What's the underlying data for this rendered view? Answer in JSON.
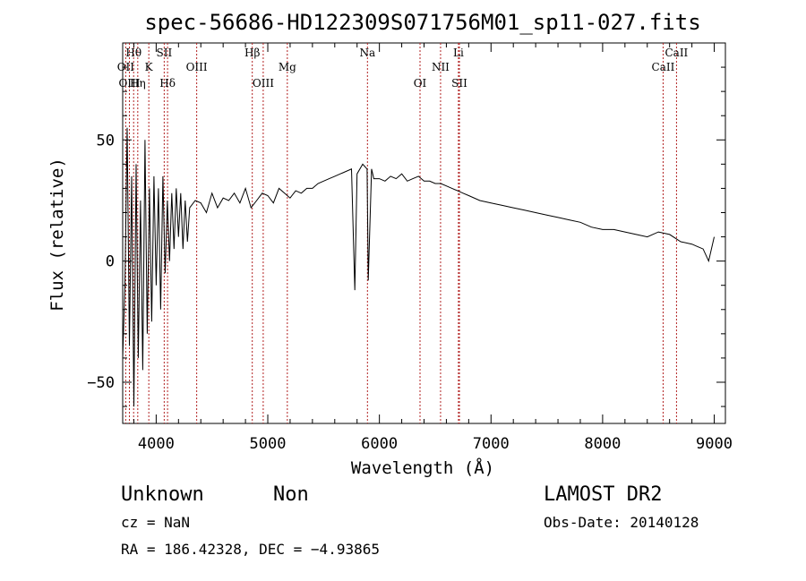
{
  "chart_data": {
    "type": "line",
    "title": "spec-56686-HD122309S071756M01_sp11-027.fits",
    "xlabel": "Wavelength (Å)",
    "ylabel": "Flux (relative)",
    "xlim": [
      3700,
      9100
    ],
    "ylim": [
      -67,
      90
    ],
    "x_ticks": [
      4000,
      5000,
      6000,
      7000,
      8000,
      9000
    ],
    "y_ticks": [
      -50,
      0,
      50
    ],
    "grid": false,
    "series": [
      {
        "x": [
          3700,
          3720,
          3740,
          3760,
          3780,
          3800,
          3820,
          3840,
          3860,
          3880,
          3900,
          3920,
          3940,
          3960,
          3980,
          4000,
          4020,
          4040,
          4060,
          4080,
          4100,
          4120,
          4140,
          4160,
          4180,
          4200,
          4220,
          4240,
          4260,
          4280,
          4300,
          4350,
          4400,
          4450,
          4500,
          4550,
          4600,
          4650,
          4700,
          4750,
          4800,
          4850,
          4900,
          4950,
          5000,
          5050,
          5100,
          5150,
          5200,
          5250,
          5300,
          5350,
          5400,
          5450,
          5500,
          5550,
          5600,
          5650,
          5700,
          5750,
          5780,
          5800,
          5850,
          5890,
          5900,
          5930,
          5950,
          6000,
          6050,
          6100,
          6150,
          6200,
          6250,
          6300,
          6350,
          6400,
          6450,
          6500,
          6550,
          6600,
          6650,
          6700,
          6750,
          6800,
          6900,
          7000,
          7100,
          7200,
          7300,
          7400,
          7500,
          7600,
          7700,
          7800,
          7900,
          8000,
          8100,
          8200,
          8300,
          8400,
          8500,
          8600,
          8700,
          8800,
          8850,
          8900,
          8950,
          9000
        ],
        "y": [
          -40,
          -10,
          55,
          -35,
          35,
          -60,
          40,
          -40,
          25,
          -45,
          50,
          -30,
          30,
          -25,
          35,
          -10,
          30,
          -20,
          35,
          -5,
          25,
          0,
          28,
          5,
          30,
          10,
          28,
          5,
          25,
          8,
          22,
          25,
          24,
          20,
          28,
          22,
          26,
          25,
          28,
          24,
          30,
          22,
          25,
          28,
          27,
          24,
          30,
          28,
          26,
          29,
          28,
          30,
          30,
          32,
          33,
          34,
          35,
          36,
          37,
          38,
          -12,
          36,
          40,
          38,
          -8,
          38,
          34,
          34,
          33,
          35,
          34,
          36,
          33,
          34,
          35,
          33,
          33,
          32,
          32,
          31,
          30,
          29,
          28,
          27,
          25,
          24,
          23,
          22,
          21,
          20,
          19,
          18,
          17,
          16,
          14,
          13,
          13,
          12,
          11,
          10,
          12,
          11,
          8,
          7,
          6,
          5,
          0,
          10
        ]
      }
    ],
    "lines": [
      {
        "label": "Hθ",
        "x": 3798,
        "row": 1
      },
      {
        "label": "OII",
        "x": 3727,
        "row": 2
      },
      {
        "label": "K",
        "x": 3934,
        "row": 2
      },
      {
        "label": "SII",
        "x": 4072,
        "row": 1
      },
      {
        "label": "OIII",
        "x": 3760,
        "row": 3
      },
      {
        "label": "Hη",
        "x": 3835,
        "row": 3
      },
      {
        "label": "Hδ",
        "x": 4102,
        "row": 3
      },
      {
        "label": "OIII",
        "x": 4363,
        "row": 2
      },
      {
        "label": "Hβ",
        "x": 4861,
        "row": 1
      },
      {
        "label": "OIII",
        "x": 4959,
        "row": 3
      },
      {
        "label": "Mg",
        "x": 5175,
        "row": 2
      },
      {
        "label": "Na",
        "x": 5893,
        "row": 1
      },
      {
        "label": "OI",
        "x": 6364,
        "row": 3
      },
      {
        "label": "NII",
        "x": 6548,
        "row": 2
      },
      {
        "label": "Li",
        "x": 6708,
        "row": 1
      },
      {
        "label": "SII",
        "x": 6717,
        "row": 3
      },
      {
        "label": "CaII",
        "x": 8662,
        "row": 1
      },
      {
        "label": "CaII",
        "x": 8542,
        "row": 2
      }
    ],
    "colors": {
      "spectrum": "#000000",
      "line_marker": "#b22222"
    }
  },
  "footer": {
    "object_class": "Unknown",
    "subclass": "Non",
    "survey": "LAMOST DR2",
    "cz": "cz = NaN",
    "obs_date": "Obs-Date: 20140128",
    "coords": "RA = 186.42328, DEC =  −4.93865"
  }
}
